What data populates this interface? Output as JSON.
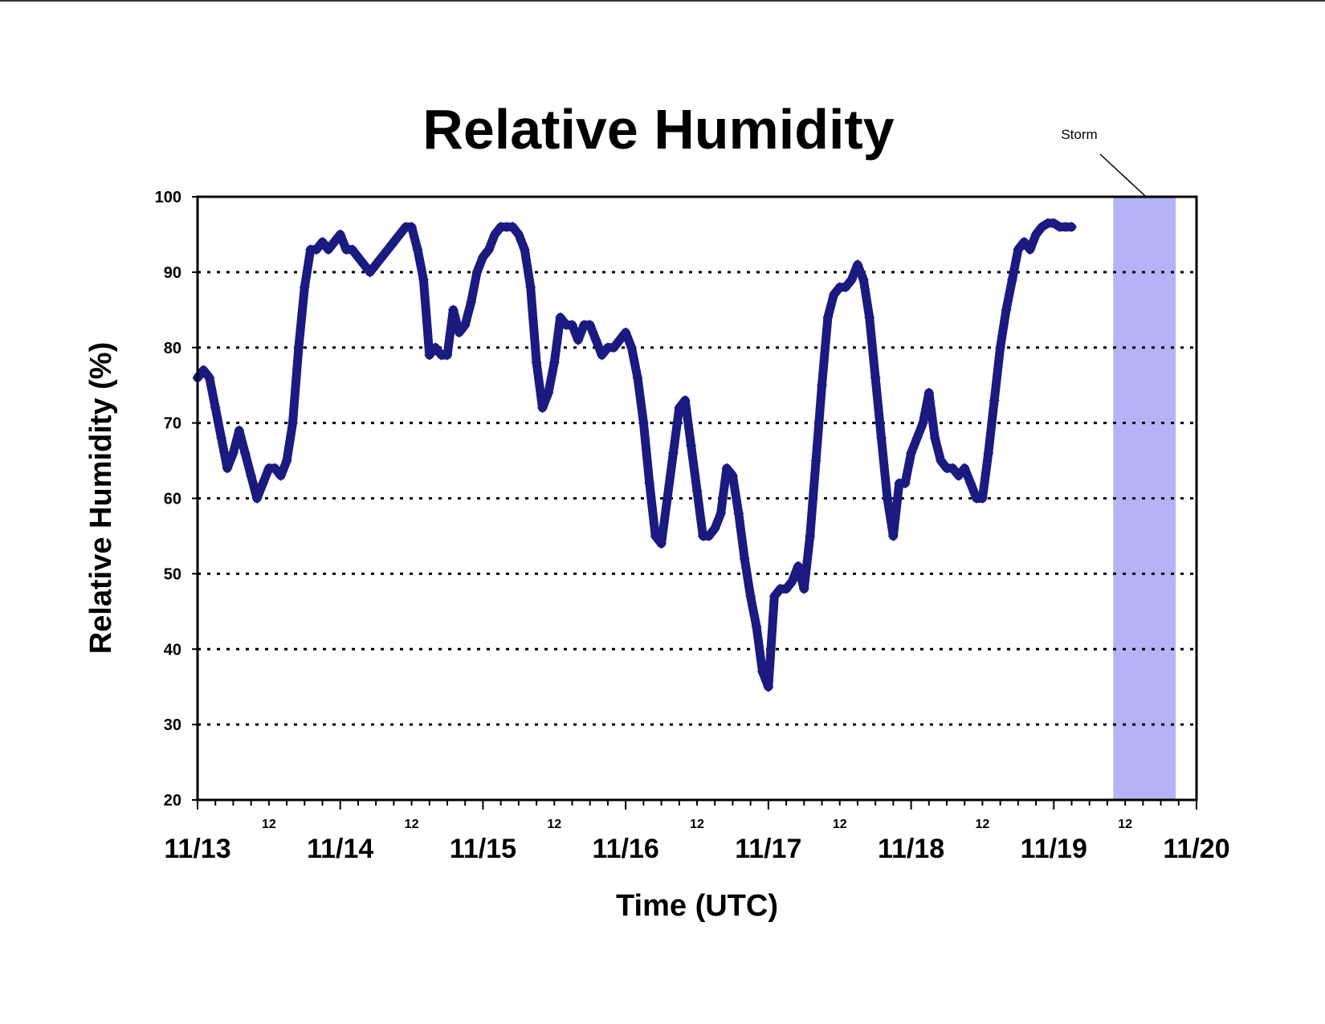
{
  "colors": {
    "series": "#1a1a80",
    "storm_band": "#b3b3f5",
    "grid": "#000000",
    "axis": "#000000"
  },
  "chart_data": {
    "type": "scatter",
    "title": "Relative Humidity",
    "xlabel": "Time (UTC)",
    "ylabel": "Relative Humidity (%)",
    "xlim": [
      0,
      168
    ],
    "ylim": [
      20,
      100
    ],
    "yticks": [
      20,
      30,
      40,
      50,
      60,
      70,
      80,
      90,
      100
    ],
    "ytick_labels": [
      "20",
      "30",
      "40",
      "50",
      "60",
      "70",
      "80",
      "90",
      "100"
    ],
    "grid": "horizontal dotted",
    "x_units": "hours since 11/13 00 UTC",
    "xticks_major": [
      {
        "x": 0,
        "label": "11/13"
      },
      {
        "x": 24,
        "label": "11/14"
      },
      {
        "x": 48,
        "label": "11/15"
      },
      {
        "x": 72,
        "label": "11/16"
      },
      {
        "x": 96,
        "label": "11/17"
      },
      {
        "x": 120,
        "label": "11/18"
      },
      {
        "x": 144,
        "label": "11/19"
      },
      {
        "x": 168,
        "label": "11/20"
      }
    ],
    "xticks_minor": [
      {
        "x": 12,
        "label": "12"
      },
      {
        "x": 36,
        "label": "12"
      },
      {
        "x": 60,
        "label": "12"
      },
      {
        "x": 84,
        "label": "12"
      },
      {
        "x": 108,
        "label": "12"
      },
      {
        "x": 132,
        "label": "12"
      },
      {
        "x": 156,
        "label": "12"
      }
    ],
    "annotation": {
      "text": "Storm",
      "x_start": 154,
      "x_end": 164.5
    },
    "series": [
      {
        "values": [
          [
            0,
            76
          ],
          [
            1,
            77
          ],
          [
            2,
            76
          ],
          [
            3,
            72
          ],
          [
            4,
            68
          ],
          [
            5,
            64
          ],
          [
            6,
            66
          ],
          [
            7,
            69
          ],
          [
            8,
            66
          ],
          [
            9,
            63
          ],
          [
            10,
            60
          ],
          [
            11,
            62
          ],
          [
            12,
            64
          ],
          [
            13,
            64
          ],
          [
            14,
            63
          ],
          [
            15,
            65
          ],
          [
            16,
            70
          ],
          [
            17,
            80
          ],
          [
            18,
            88
          ],
          [
            19,
            93
          ],
          [
            20,
            93
          ],
          [
            21,
            94
          ],
          [
            22,
            93
          ],
          [
            23,
            94
          ],
          [
            24,
            95
          ],
          [
            25,
            93
          ],
          [
            26,
            93
          ],
          [
            27,
            92
          ],
          [
            28,
            91
          ],
          [
            29,
            90
          ],
          [
            30,
            91
          ],
          [
            31,
            92
          ],
          [
            32,
            93
          ],
          [
            33,
            94
          ],
          [
            34,
            95
          ],
          [
            35,
            96
          ],
          [
            36,
            96
          ],
          [
            37,
            93
          ],
          [
            38,
            89
          ],
          [
            39,
            79
          ],
          [
            40,
            80
          ],
          [
            41,
            79
          ],
          [
            42,
            79
          ],
          [
            43,
            85
          ],
          [
            44,
            82
          ],
          [
            45,
            83
          ],
          [
            46,
            86
          ],
          [
            47,
            90
          ],
          [
            48,
            92
          ],
          [
            49,
            93
          ],
          [
            50,
            95
          ],
          [
            51,
            96
          ],
          [
            52,
            96
          ],
          [
            53,
            96
          ],
          [
            54,
            95
          ],
          [
            55,
            93
          ],
          [
            56,
            88
          ],
          [
            57,
            78
          ],
          [
            58,
            72
          ],
          [
            59,
            74
          ],
          [
            60,
            78
          ],
          [
            61,
            84
          ],
          [
            62,
            83
          ],
          [
            63,
            83
          ],
          [
            64,
            81
          ],
          [
            65,
            83
          ],
          [
            66,
            83
          ],
          [
            67,
            81
          ],
          [
            68,
            79
          ],
          [
            69,
            80
          ],
          [
            70,
            80
          ],
          [
            71,
            81
          ],
          [
            72,
            82
          ],
          [
            73,
            80
          ],
          [
            74,
            76
          ],
          [
            75,
            70
          ],
          [
            76,
            62
          ],
          [
            77,
            55
          ],
          [
            78,
            54
          ],
          [
            79,
            60
          ],
          [
            80,
            66
          ],
          [
            81,
            72
          ],
          [
            82,
            73
          ],
          [
            83,
            67
          ],
          [
            84,
            61
          ],
          [
            85,
            55
          ],
          [
            86,
            55
          ],
          [
            87,
            56
          ],
          [
            88,
            58
          ],
          [
            89,
            64
          ],
          [
            90,
            63
          ],
          [
            91,
            58
          ],
          [
            92,
            52
          ],
          [
            93,
            47
          ],
          [
            94,
            43
          ],
          [
            95,
            37
          ],
          [
            96,
            35
          ],
          [
            97,
            47
          ],
          [
            98,
            48
          ],
          [
            99,
            48
          ],
          [
            100,
            49
          ],
          [
            101,
            51
          ],
          [
            102,
            48
          ],
          [
            103,
            55
          ],
          [
            104,
            65
          ],
          [
            105,
            75
          ],
          [
            106,
            84
          ],
          [
            107,
            87
          ],
          [
            108,
            88
          ],
          [
            109,
            88
          ],
          [
            110,
            89
          ],
          [
            111,
            91
          ],
          [
            112,
            89
          ],
          [
            113,
            84
          ],
          [
            114,
            76
          ],
          [
            115,
            68
          ],
          [
            116,
            60
          ],
          [
            117,
            55
          ],
          [
            118,
            62
          ],
          [
            119,
            62
          ],
          [
            120,
            66
          ],
          [
            121,
            68
          ],
          [
            122,
            70
          ],
          [
            123,
            74
          ],
          [
            124,
            68
          ],
          [
            125,
            65
          ],
          [
            126,
            64
          ],
          [
            127,
            64
          ],
          [
            128,
            63
          ],
          [
            129,
            64
          ],
          [
            130,
            62
          ],
          [
            131,
            60
          ],
          [
            132,
            60
          ],
          [
            133,
            66
          ],
          [
            134,
            73
          ],
          [
            135,
            80
          ],
          [
            136,
            85
          ],
          [
            137,
            89
          ],
          [
            138,
            93
          ],
          [
            139,
            94
          ],
          [
            140,
            93
          ],
          [
            141,
            95
          ],
          [
            142,
            96
          ],
          [
            143,
            96.5
          ],
          [
            144,
            96.5
          ],
          [
            145,
            96
          ],
          [
            146,
            96
          ],
          [
            147,
            96
          ]
        ]
      }
    ]
  }
}
